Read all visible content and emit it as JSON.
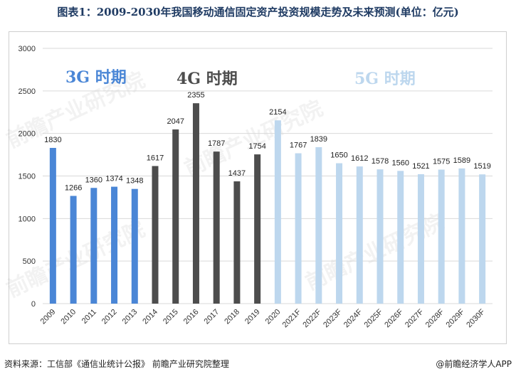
{
  "title": "图表1：2009-2030年我国移动通信固定资产投资规模走势及未来预测(单位：亿元)",
  "footer": {
    "source": "资料来源：工信部《通信业统计公报》 前瞻产业研究院整理",
    "credit": "@前瞻经济学人APP"
  },
  "watermark": "前瞻产业研究院",
  "colors": {
    "3g": "#4a86d6",
    "4g": "#4d4d4d",
    "5g": "#bdd7ee",
    "grid": "#d9d9d9",
    "axis_text": "#333333"
  },
  "chart_data": {
    "type": "bar",
    "title": "",
    "xlabel": "",
    "ylabel": "",
    "ylim": [
      0,
      3000
    ],
    "yticks": [
      0,
      500,
      1000,
      1500,
      2000,
      2500,
      3000
    ],
    "grid": true,
    "categories": [
      "2009",
      "2010",
      "2011",
      "2012",
      "2013",
      "2014",
      "2015",
      "2016",
      "2017",
      "2018",
      "2019",
      "2020",
      "2021F",
      "2022F",
      "2023F",
      "2024F",
      "2025F",
      "2026F",
      "2027F",
      "2028F",
      "2029F",
      "2030F"
    ],
    "values": [
      1830,
      1266,
      1360,
      1374,
      1348,
      1617,
      2047,
      2355,
      1787,
      1437,
      1754,
      2154,
      1767,
      1839,
      1650,
      1612,
      1578,
      1560,
      1521,
      1575,
      1589,
      1519
    ],
    "period_by_index": [
      "3g",
      "3g",
      "3g",
      "3g",
      "3g",
      "4g",
      "4g",
      "4g",
      "4g",
      "4g",
      "4g",
      "5g",
      "5g",
      "5g",
      "5g",
      "5g",
      "5g",
      "5g",
      "5g",
      "5g",
      "5g",
      "5g"
    ],
    "annotations": [
      {
        "text": "3G 时期",
        "period": "3g"
      },
      {
        "text": "4G 时期",
        "period": "4g"
      },
      {
        "text": "5G 时期",
        "period": "5g"
      }
    ]
  }
}
